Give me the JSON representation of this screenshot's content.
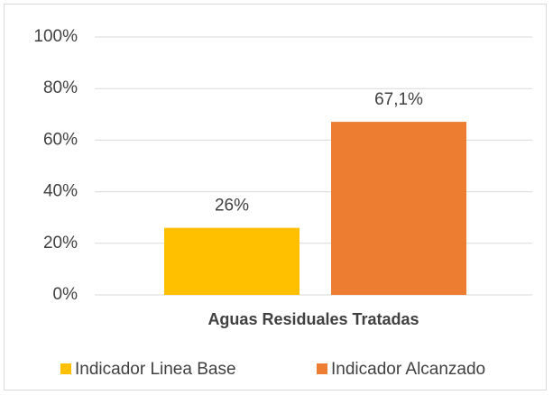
{
  "chart_data": {
    "type": "bar",
    "categories": [
      "Aguas Residuales Tratadas"
    ],
    "series": [
      {
        "name": "Indicador Linea Base",
        "color": "#ffc000",
        "values": [
          26
        ],
        "value_labels": [
          "26%"
        ]
      },
      {
        "name": "Indicador Alcanzado",
        "color": "#ed7d31",
        "values": [
          67.1
        ],
        "value_labels": [
          "67,1%"
        ]
      }
    ],
    "ylim": [
      0,
      100
    ],
    "yticks": [
      {
        "value": 0,
        "label": "0%"
      },
      {
        "value": 20,
        "label": "20%"
      },
      {
        "value": 40,
        "label": "40%"
      },
      {
        "value": 60,
        "label": "60%"
      },
      {
        "value": 80,
        "label": "80%"
      },
      {
        "value": 100,
        "label": "100%"
      }
    ],
    "grid": true,
    "legend": "bottom"
  }
}
